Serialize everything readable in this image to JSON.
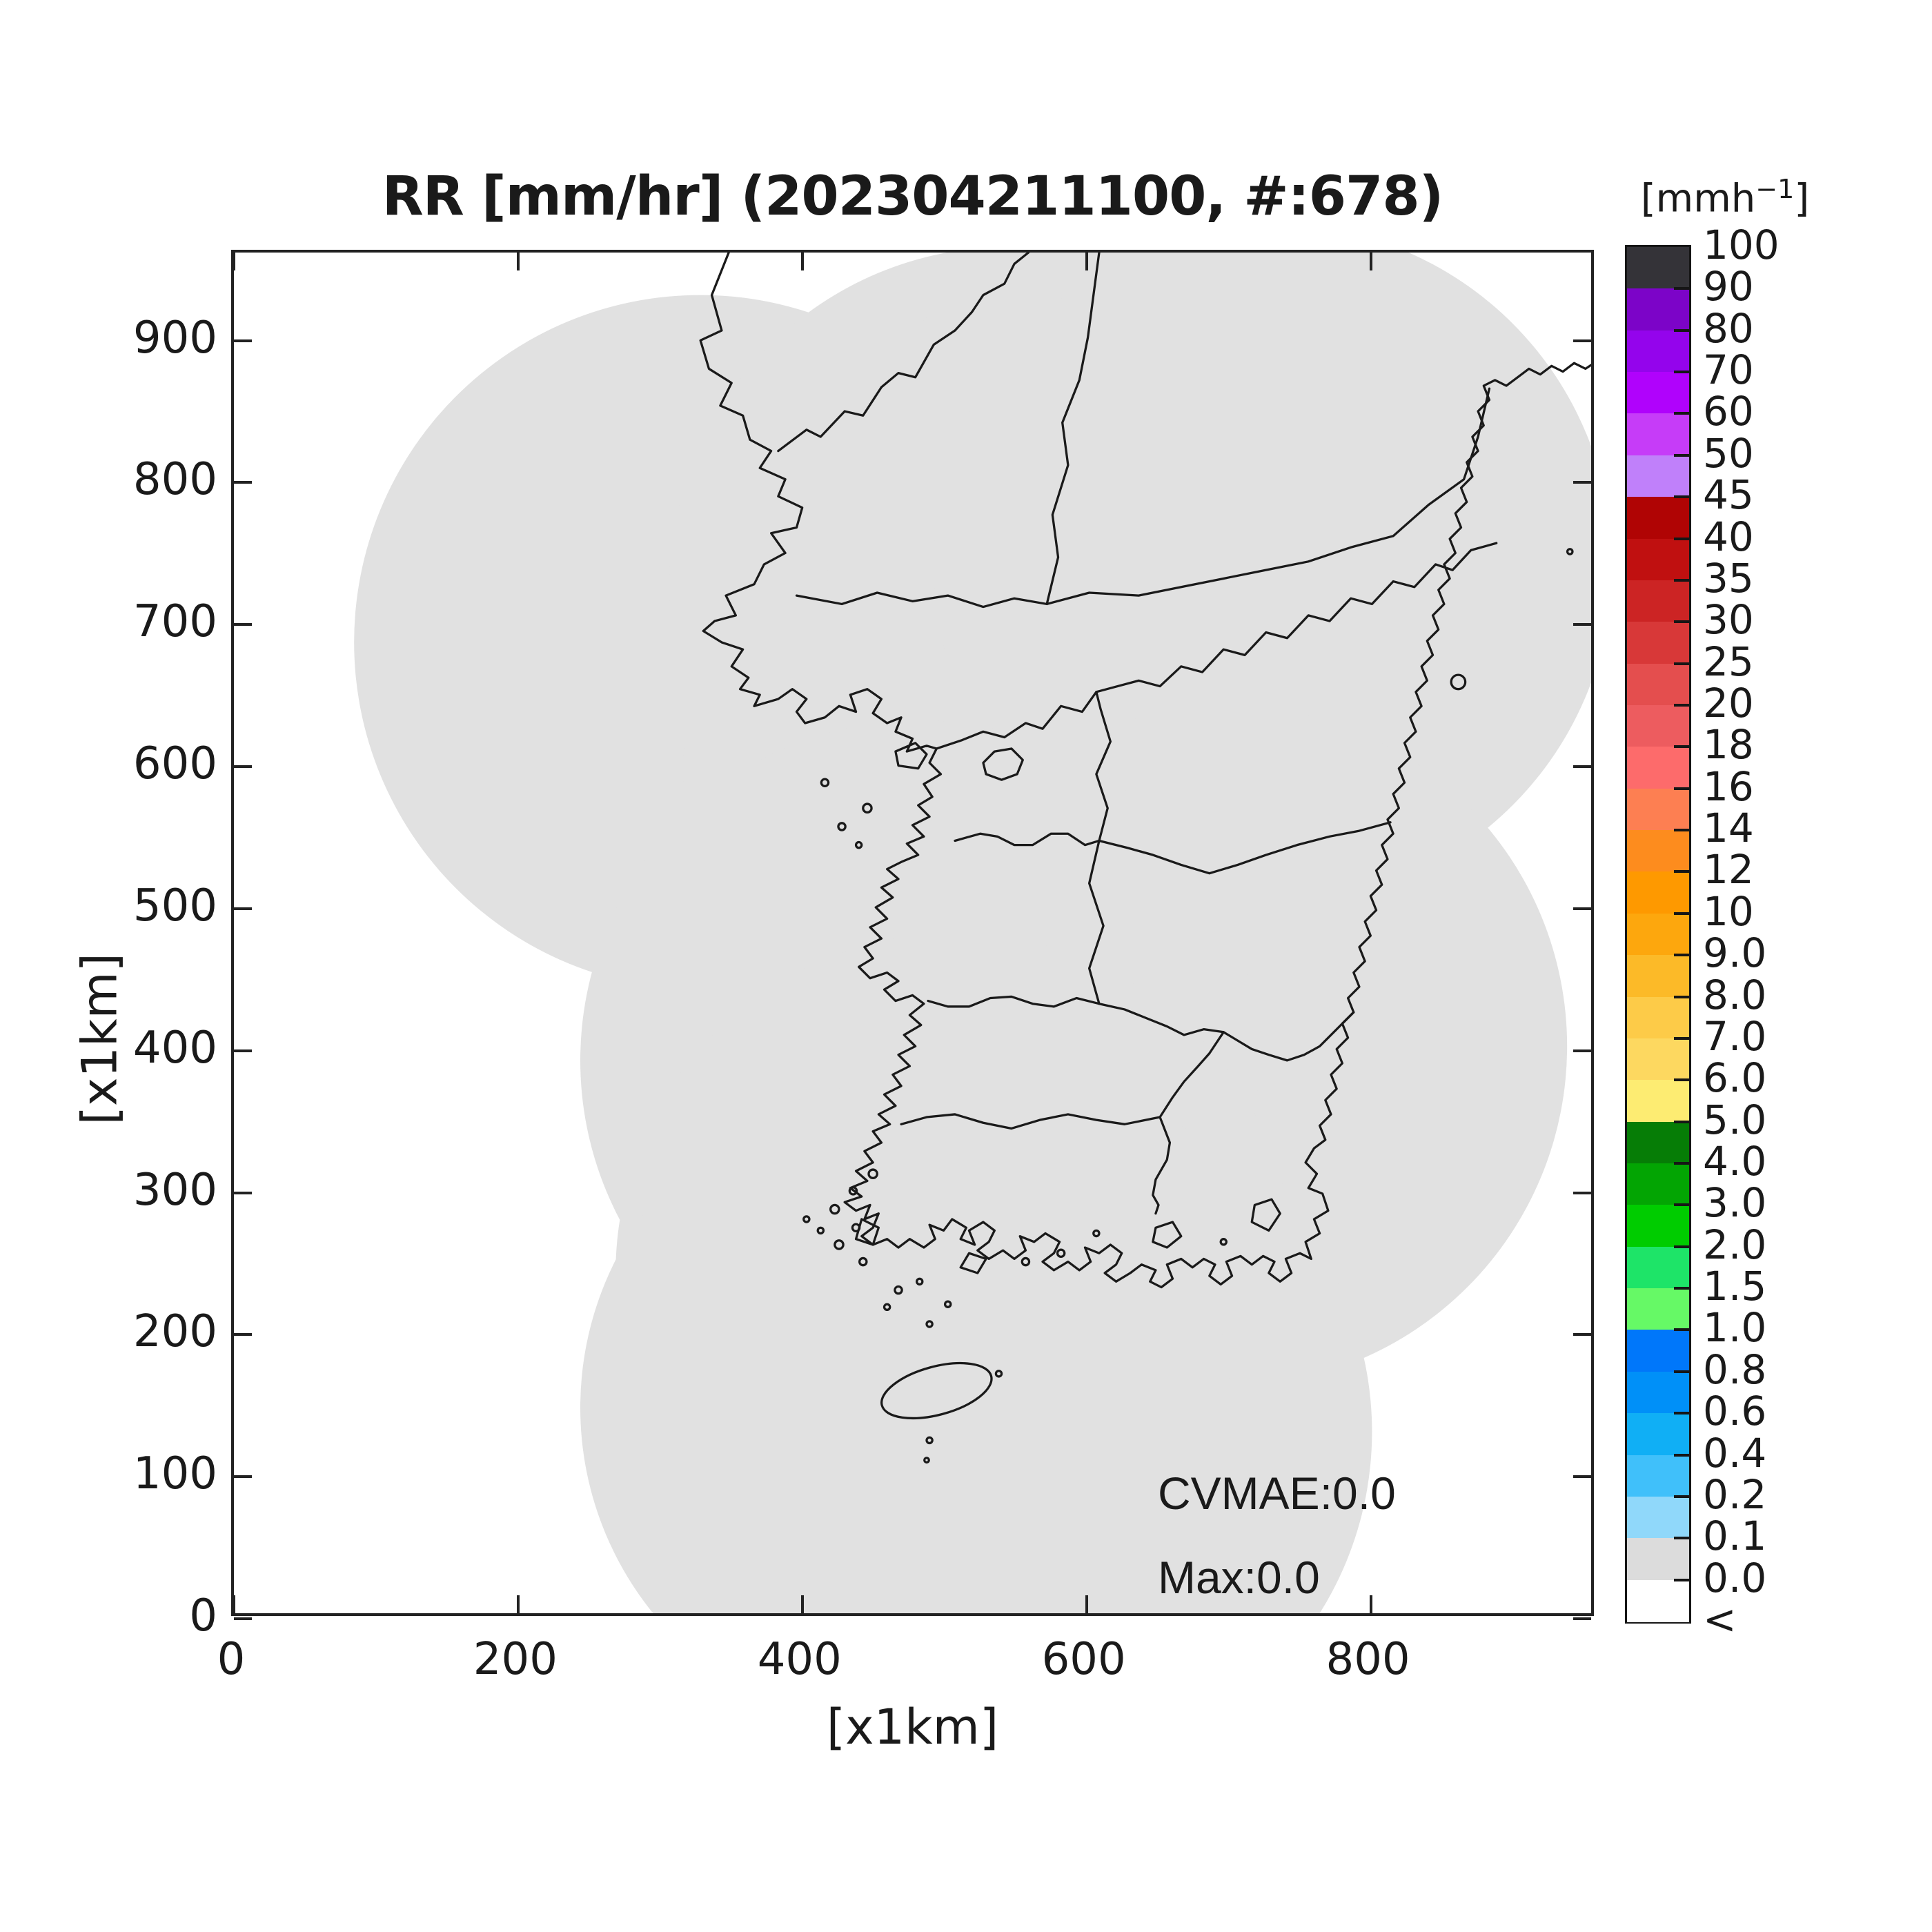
{
  "title": "RR [mm/hr] (202304211100, #:678)",
  "axes": {
    "x_label": "[x1km]",
    "y_label": "[x1km]",
    "x_ticks": [
      {
        "label": "0",
        "v": 0
      },
      {
        "label": "200",
        "v": 200
      },
      {
        "label": "400",
        "v": 400
      },
      {
        "label": "600",
        "v": 600
      },
      {
        "label": "800",
        "v": 800
      }
    ],
    "y_ticks": [
      {
        "label": "0",
        "v": 0
      },
      {
        "label": "100",
        "v": 100
      },
      {
        "label": "200",
        "v": 200
      },
      {
        "label": "300",
        "v": 300
      },
      {
        "label": "400",
        "v": 400
      },
      {
        "label": "500",
        "v": 500
      },
      {
        "label": "600",
        "v": 600
      },
      {
        "label": "700",
        "v": 700
      },
      {
        "label": "800",
        "v": 800
      },
      {
        "label": "900",
        "v": 900
      }
    ],
    "x_range": [
      0,
      959
    ],
    "y_range": [
      0,
      962
    ]
  },
  "annotations": {
    "cvmae": "CVMAE:0.0",
    "max": "Max:0.0"
  },
  "colorbar": {
    "unit_prefix": "[mmh",
    "unit_sup": "−1",
    "unit_suffix": "]",
    "boundary_labels": [
      "100",
      "90",
      "80",
      "70",
      "60",
      "50",
      "45",
      "40",
      "35",
      "30",
      "25",
      "20",
      "18",
      "16",
      "14",
      "12",
      "10",
      "9.0",
      "8.0",
      "7.0",
      "6.0",
      "5.0",
      "4.0",
      "3.0",
      "2.0",
      "1.5",
      "1.0",
      "0.8",
      "0.6",
      "0.4",
      "0.2",
      "0.1",
      "0.0",
      "<"
    ],
    "segment_colors": [
      "#343338",
      "#7c04c8",
      "#9404ec",
      "#b002fc",
      "#c63cf8",
      "#c080fa",
      "#b00404",
      "#c01010",
      "#cc2424",
      "#d83838",
      "#e44e4e",
      "#ed5c5f",
      "#fd6b6b",
      "#fd7f52",
      "#fd8c1e",
      "#fe9900",
      "#fda70d",
      "#fcba28",
      "#fdcb48",
      "#fdd860",
      "#fdec72",
      "#067d06",
      "#03a503",
      "#00cc00",
      "#1ee468",
      "#66f966",
      "#0077fa",
      "#0090f8",
      "#10aff5",
      "#40c0fa",
      "#90d8fa",
      "#dcdcdc",
      "#ffffff"
    ]
  },
  "map": {
    "coverage_color": "#e1e1e1",
    "coast_color": "#1a1a1a"
  },
  "chart_data": {
    "type": "heatmap",
    "title": "RR [mm/hr] (202304211100, #:678)",
    "xlabel": "[x1km]",
    "ylabel": "[x1km]",
    "xlim": [
      0,
      959
    ],
    "ylim": [
      0,
      962
    ],
    "x_ticks": [
      0,
      200,
      400,
      600,
      800
    ],
    "y_ticks": [
      0,
      100,
      200,
      300,
      400,
      500,
      600,
      700,
      800,
      900
    ],
    "colorbar_unit": "mmh-1",
    "colorbar_levels": [
      100,
      90,
      80,
      70,
      60,
      50,
      45,
      40,
      35,
      30,
      25,
      20,
      18,
      16,
      14,
      12,
      10,
      9.0,
      8.0,
      7.0,
      6.0,
      5.0,
      4.0,
      3.0,
      2.0,
      1.5,
      1.0,
      0.8,
      0.6,
      0.4,
      0.2,
      0.1,
      0.0
    ],
    "values_summary": "Radar rain-rate composite over the Korean Peninsula; all values 0.0 mm/hr inside radar coverage (gray), no echoes",
    "statistics": {
      "CVMAE": 0.0,
      "Max": 0.0
    },
    "legend_position": "right colorbar",
    "grid": false
  }
}
